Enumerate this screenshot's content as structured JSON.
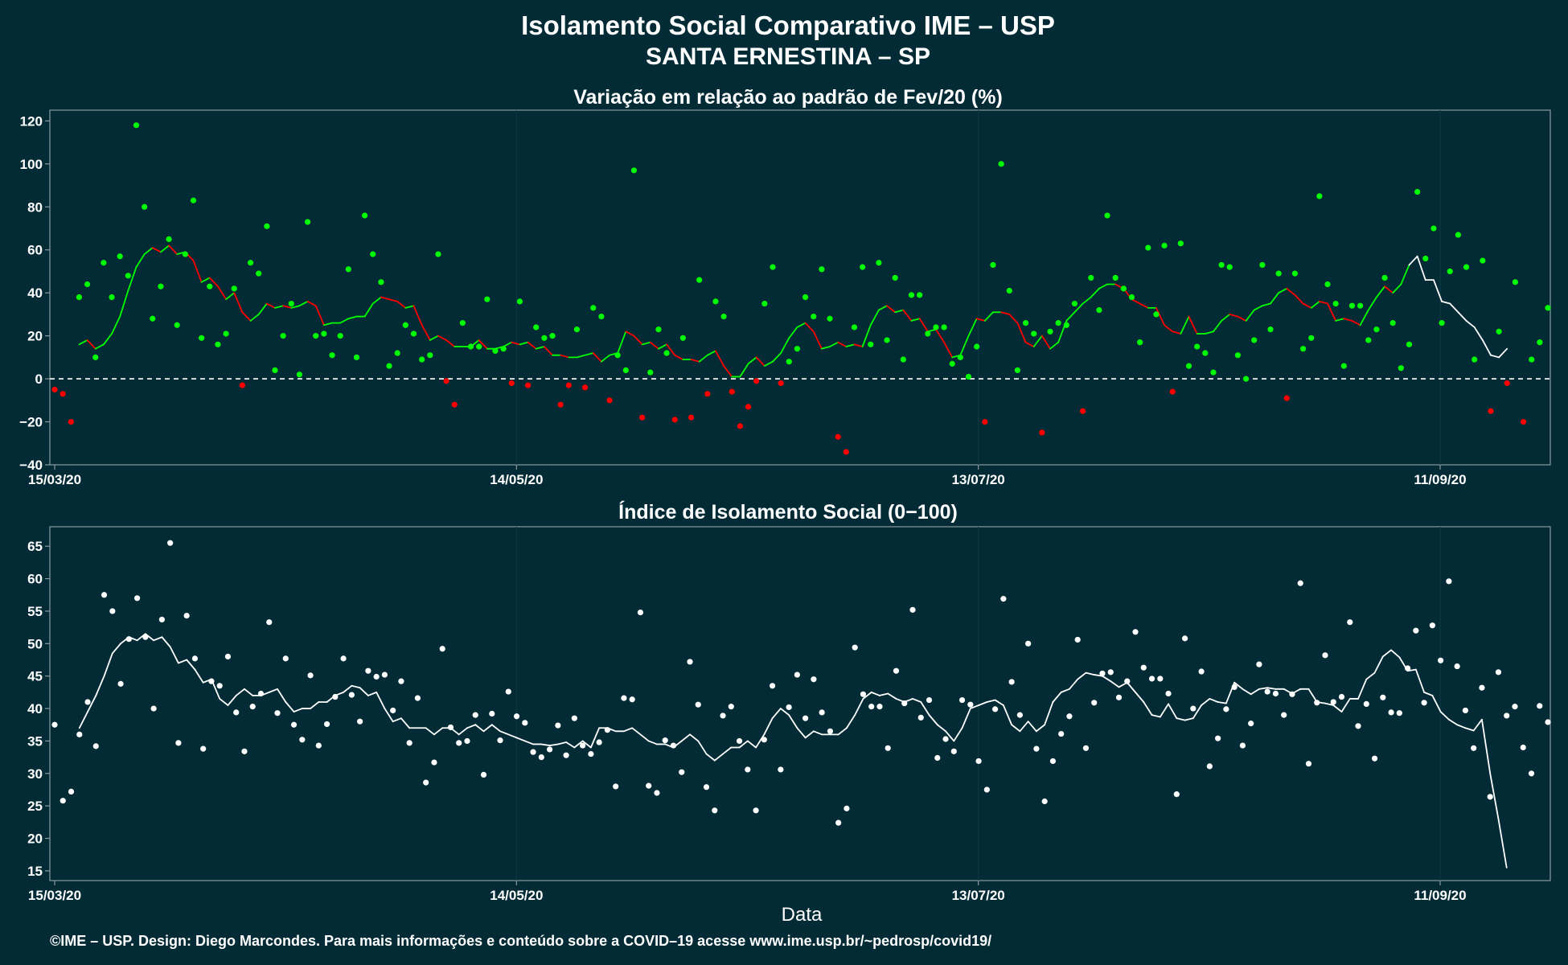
{
  "title_line1": "Isolamento Social Comparativo IME – USP",
  "title_line2": "SANTA ERNESTINA – SP",
  "footer": "©IME – USP. Design: Diego Marcondes. Para mais informações e conteúdo sobre a COVID–19 acesse www.ime.usp.br/~pedrosp/covid19/",
  "colors": {
    "background": "#022b35",
    "positive": "#00ff00",
    "negative": "#ff0000",
    "white": "#ffffff",
    "axis": "#8a9aa0",
    "grid": "#0f3a44"
  },
  "chart_data": [
    {
      "type": "scatter",
      "title": "Variação em relação ao padrão de Fev/20 (%)",
      "xlabel": "",
      "ylabel": "",
      "x_ticks": [
        "15/03/20",
        "14/05/20",
        "13/07/20",
        "11/09/20"
      ],
      "x_range": [
        "15/03/20",
        "26/09/20"
      ],
      "y_ticks": [
        "120",
        "100",
        "80",
        "60",
        "40",
        "20",
        "0",
        "−20",
        "−40"
      ],
      "ylim": [
        -40,
        125
      ],
      "reference_line": 0,
      "grid": true,
      "point_color_rule": "green if value >= 0, red if value < 0",
      "series": [
        {
          "type": "points",
          "values": [
            -5,
            -7,
            -20,
            38,
            44,
            10,
            54,
            38,
            57,
            48,
            118,
            80,
            28,
            43,
            65,
            25,
            58,
            83,
            19,
            43,
            16,
            21,
            42,
            -3,
            54,
            49,
            71,
            4,
            20,
            35,
            2,
            73,
            20,
            21,
            11,
            20,
            51,
            10,
            76,
            58,
            45,
            6,
            12,
            25,
            21,
            9,
            11,
            58,
            -1,
            -12,
            26,
            15,
            15,
            37,
            13,
            14,
            -2,
            36,
            -3,
            24,
            19,
            20,
            -12,
            -3,
            23,
            -4,
            33,
            29,
            -10,
            11,
            4,
            97,
            -18,
            3,
            23,
            12,
            -19,
            19,
            -18,
            46,
            -7,
            36,
            29,
            -6,
            -22,
            -13,
            -1,
            35,
            52,
            -2,
            8,
            14,
            38,
            29,
            51,
            28,
            -27,
            -34,
            24,
            52,
            16,
            54,
            18,
            47,
            9,
            39,
            39,
            21,
            24,
            24,
            7,
            10,
            1,
            15,
            -20,
            53,
            100,
            41,
            4,
            26,
            21,
            -25,
            22,
            26,
            25,
            35,
            -15,
            47,
            32,
            76,
            47,
            42,
            38,
            17,
            61,
            30,
            62,
            -6,
            63,
            6,
            15,
            12,
            3,
            53,
            52,
            11,
            0,
            18,
            53,
            23,
            49,
            -9,
            49,
            14,
            19,
            85,
            44,
            35,
            6,
            34,
            34,
            18,
            23,
            47,
            26,
            5,
            16,
            87,
            56,
            70,
            26,
            50,
            67,
            52,
            9,
            55,
            -15,
            22,
            -2,
            45,
            -20,
            9,
            17,
            33
          ],
          "color_rule": "sign"
        },
        {
          "type": "line",
          "name": "",
          "values": [
            null,
            null,
            null,
            16,
            18,
            14,
            16,
            21,
            29,
            41,
            52,
            58,
            61,
            59,
            62,
            58,
            59,
            55,
            45,
            47,
            43,
            37,
            40,
            31,
            27,
            30,
            35,
            33,
            34,
            33,
            34,
            36,
            34,
            25,
            26,
            26,
            28,
            29,
            29,
            35,
            38,
            37,
            36,
            33,
            34,
            25,
            18,
            20,
            18,
            15,
            15,
            15,
            18,
            14,
            14,
            15,
            17,
            16,
            17,
            14,
            15,
            11,
            11,
            10,
            10,
            11,
            12,
            8,
            11,
            12,
            22,
            20,
            16,
            17,
            14,
            16,
            11,
            9,
            9,
            8,
            11,
            13,
            6,
            1,
            1,
            7,
            10,
            6,
            8,
            12,
            19,
            24,
            26,
            22,
            14,
            15,
            17,
            15,
            16,
            15,
            25,
            32,
            34,
            31,
            32,
            27,
            28,
            22,
            23,
            17,
            10,
            11,
            20,
            28,
            27,
            31,
            31,
            30,
            26,
            17,
            15,
            20,
            14,
            17,
            27,
            31,
            35,
            38,
            42,
            44,
            44,
            42,
            37,
            35,
            33,
            33,
            25,
            22,
            21,
            29,
            21,
            21,
            22,
            27,
            30,
            29,
            27,
            32,
            34,
            35,
            40,
            42,
            39,
            35,
            33,
            36,
            35,
            27,
            28,
            27,
            25,
            32,
            38,
            43,
            40,
            44,
            53,
            57,
            46,
            46,
            36,
            35,
            31,
            27,
            24,
            18,
            11,
            10,
            14
          ],
          "color_rule": "green if rising, red if falling, white for most recent period"
        }
      ]
    },
    {
      "type": "scatter",
      "title": "Índice de Isolamento Social (0−100)",
      "xlabel": "Data",
      "ylabel": "",
      "x_ticks": [
        "15/03/20",
        "14/05/20",
        "13/07/20",
        "11/09/20"
      ],
      "x_range": [
        "15/03/20",
        "26/09/20"
      ],
      "y_ticks": [
        "65",
        "60",
        "55",
        "50",
        "45",
        "40",
        "35",
        "30",
        "25",
        "20",
        "15"
      ],
      "ylim": [
        13.5,
        68
      ],
      "grid": true,
      "series": [
        {
          "type": "points",
          "color": "#ffffff",
          "values": [
            37.5,
            25.8,
            27.2,
            36,
            41,
            34.2,
            57.5,
            55,
            43.8,
            50.7,
            57,
            51,
            40,
            53.7,
            65.5,
            34.7,
            54.3,
            47.7,
            33.8,
            44.2,
            43.5,
            48,
            39.4,
            33.4,
            40.3,
            42.3,
            53.3,
            39.3,
            47.7,
            37.5,
            35.2,
            45.1,
            34.3,
            37.6,
            41.8,
            47.7,
            42.1,
            38,
            45.8,
            44.9,
            45.2,
            39.7,
            44.2,
            34.7,
            41.6,
            28.6,
            31.7,
            49.2,
            37.1,
            34.7,
            35,
            39,
            29.8,
            39.2,
            35.1,
            42.6,
            38.8,
            37.8,
            33.3,
            32.5,
            33.7,
            37.4,
            32.8,
            38.5,
            34.3,
            33,
            34.8,
            36.7,
            28,
            41.6,
            41.4,
            54.8,
            28.1,
            27,
            35.1,
            34.3,
            30.2,
            47.2,
            40.6,
            27.9,
            24.3,
            38.9,
            40.3,
            35,
            30.6,
            24.3,
            35.2,
            43.5,
            30.6,
            40.2,
            45.2,
            38.5,
            44.5,
            39.4,
            36.5,
            22.4,
            24.6,
            49.4,
            42.2,
            40.3,
            40.3,
            33.9,
            45.8,
            40.8,
            55.2,
            38.6,
            41.3,
            32.4,
            35.3,
            33.4,
            41.3,
            40.6,
            31.9,
            27.5,
            39.9,
            56.9,
            44.1,
            39,
            50,
            33.8,
            25.7,
            31.9,
            36.1,
            38.8,
            50.6,
            33.9,
            40.9,
            45.4,
            45.6,
            41.7,
            44.2,
            51.8,
            46.3,
            44.6,
            44.6,
            42.3,
            26.8,
            50.8,
            40,
            45.7,
            31.1,
            35.4,
            39.9,
            43.3,
            34.3,
            37.7,
            46.8,
            42.6,
            42.3,
            39,
            42.2,
            59.3,
            31.5,
            40.9,
            48.2,
            41,
            41.8,
            53.3,
            37.3,
            40.7,
            32.3,
            41.7,
            39.4,
            39.3,
            46.2,
            52,
            40.9,
            52.8,
            47.4,
            59.6,
            46.5,
            39.7,
            33.9,
            43.2,
            26.4,
            45.6,
            38.9,
            40.3,
            34,
            30,
            40.4,
            37.9
          ],
          "color_rule": "white"
        },
        {
          "type": "line",
          "name": "",
          "color": "#ffffff",
          "values": [
            null,
            null,
            null,
            37,
            39.5,
            42,
            45,
            48.5,
            50,
            51,
            50.5,
            51.5,
            50.5,
            51,
            49.5,
            47,
            47.5,
            46,
            44,
            44.5,
            41.5,
            40.5,
            42,
            43,
            42,
            42,
            42.5,
            43,
            41,
            39.5,
            40,
            40,
            41,
            41,
            42,
            42.5,
            43.5,
            43.2,
            42,
            42.5,
            40,
            38,
            38.5,
            37,
            37,
            37,
            36,
            37,
            37,
            36,
            37,
            37.5,
            36.5,
            37.5,
            36.5,
            36,
            35.5,
            35,
            34.5,
            34.5,
            34.3,
            34.5,
            34.8,
            34,
            35,
            34,
            37,
            37,
            36.5,
            36.5,
            37,
            36,
            35,
            34.5,
            34.5,
            34,
            35,
            36,
            35,
            33,
            32,
            33,
            34,
            34,
            35,
            34,
            36,
            38.5,
            40,
            39,
            37,
            35.5,
            36.5,
            36,
            36,
            36,
            37,
            39,
            41.5,
            42.5,
            42,
            42.3,
            41.5,
            41,
            41.5,
            41,
            39,
            37.5,
            36.5,
            35,
            37,
            40,
            40.5,
            41,
            41.3,
            40.5,
            37.5,
            36.5,
            38,
            36.5,
            37.5,
            41,
            42.5,
            43,
            44.5,
            45.5,
            45.2,
            45,
            44.2,
            43.3,
            44,
            42.5,
            41,
            39,
            38.7,
            40.7,
            38.5,
            38.2,
            38.5,
            40.5,
            41.5,
            41,
            40.8,
            44,
            43,
            42.2,
            43,
            43.2,
            43,
            43,
            42.3,
            43,
            43,
            41,
            40.8,
            40.5,
            39.5,
            41.5,
            41.5,
            44.5,
            45.5,
            48,
            49,
            47.9,
            45.8,
            46,
            42.5,
            42,
            39.5,
            38.3,
            37.5,
            37,
            36.6,
            38.3,
            30,
            23,
            15.5
          ],
          "color_rule": "white"
        }
      ]
    }
  ]
}
